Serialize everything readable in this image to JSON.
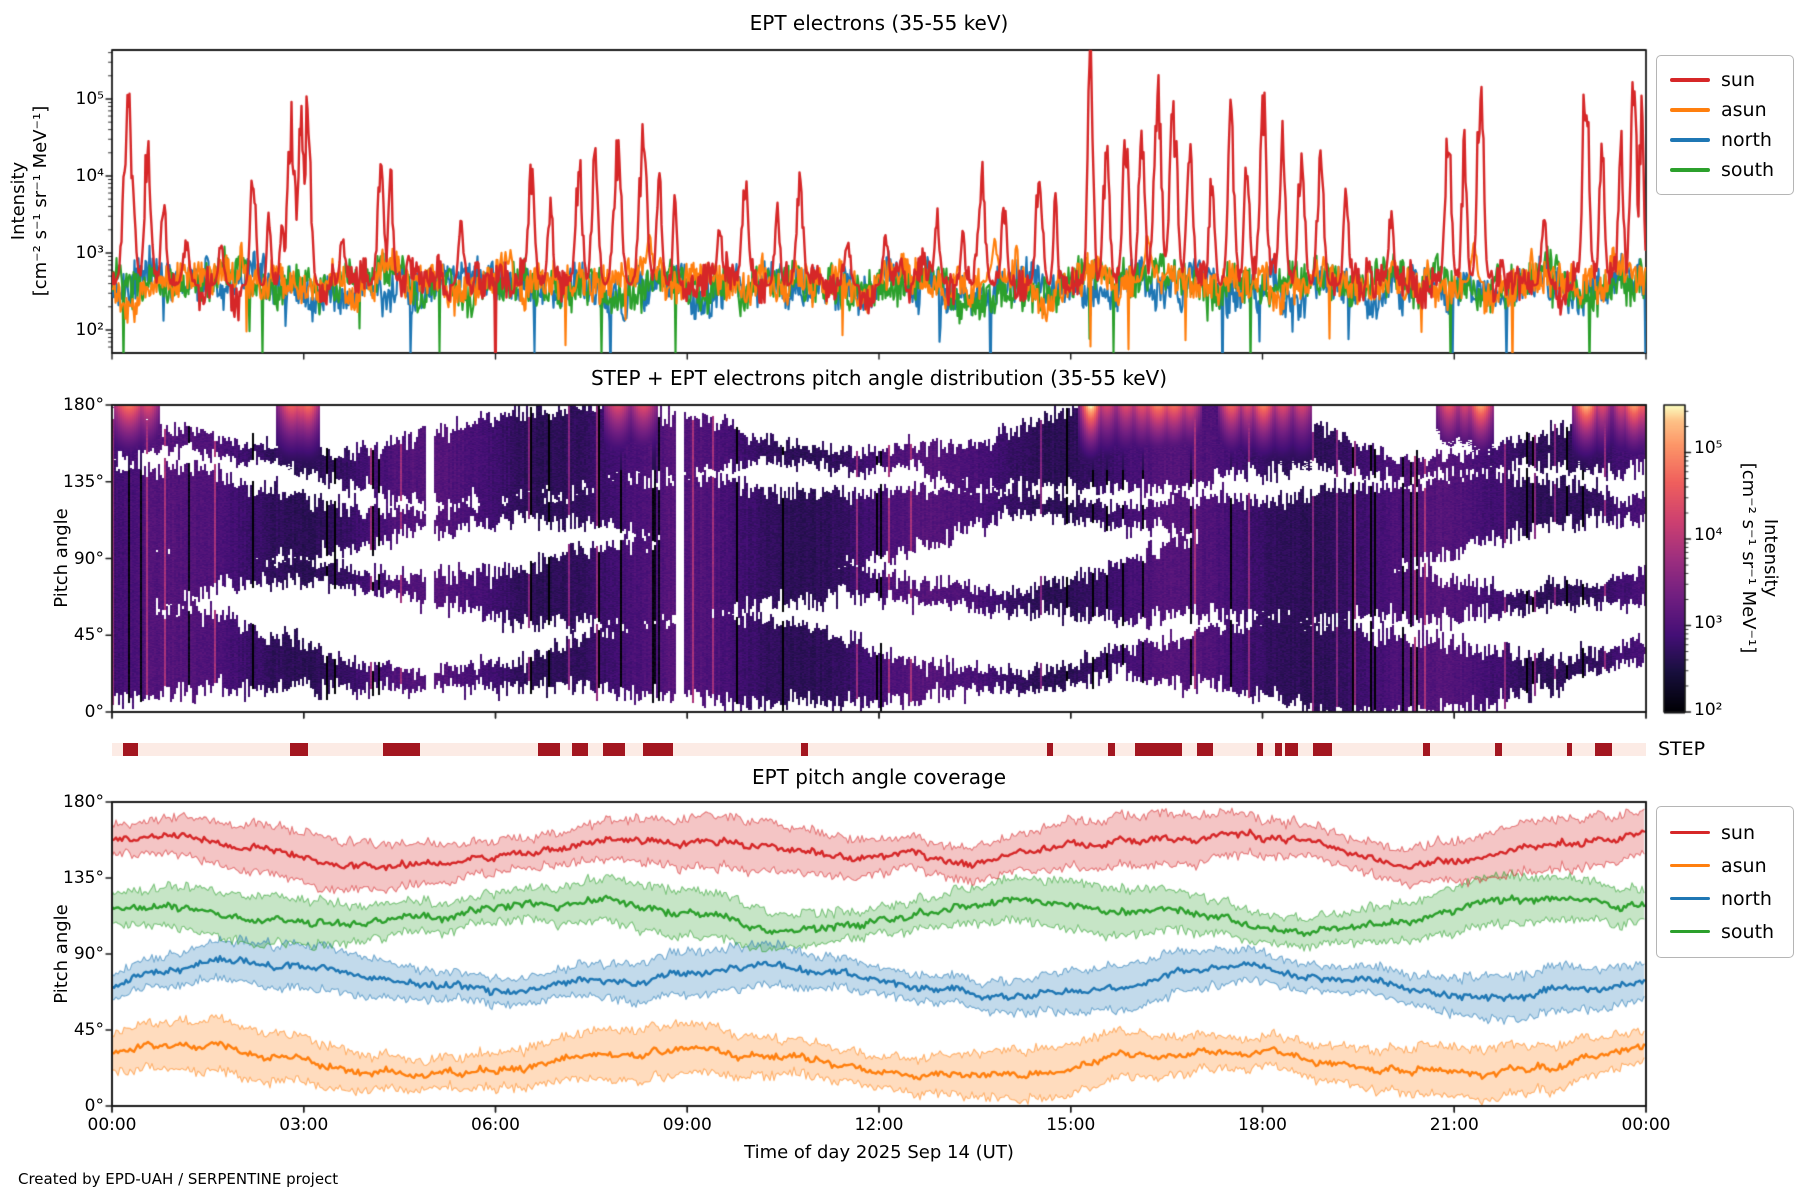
{
  "colors": {
    "sun": "#d62728",
    "asun": "#ff7f0e",
    "north": "#1f77b4",
    "south": "#2ca02c",
    "step_bar_bg": "#fcebe5",
    "step_bar_fg": "#a31620",
    "spine": "#1a1a1a"
  },
  "legend": {
    "items": [
      {
        "key": "sun",
        "label": "sun"
      },
      {
        "key": "asun",
        "label": "asun"
      },
      {
        "key": "north",
        "label": "north"
      },
      {
        "key": "south",
        "label": "south"
      }
    ]
  },
  "footer": {
    "attribution": "Created by EPD-UAH / SERPENTINE project"
  },
  "chart_data": [
    {
      "type": "line",
      "title": "EPT electrons (35-55 keV)",
      "ylabel_line1": "Intensity",
      "ylabel_line2": "[cm⁻² s⁻¹ sr⁻¹ MeV⁻¹]",
      "yscale": "log",
      "ylim_log10": [
        1.701,
        5.636
      ],
      "ytick_labels": [
        "10⁵",
        "10⁴",
        "10³",
        "10²"
      ],
      "ytick_values_log10": [
        5,
        4,
        3,
        2
      ],
      "x_range_hours": [
        0,
        24
      ],
      "legend_position": "upper right outside",
      "series": [
        {
          "name": "north",
          "color_key": "north",
          "base_log10": 2.52,
          "jitter_log10": 0.44,
          "dip_prob": 0.012,
          "seed": 33,
          "spikes": []
        },
        {
          "name": "south",
          "color_key": "south",
          "base_log10": 2.6,
          "jitter_log10": 0.42,
          "dip_prob": 0.01,
          "seed": 44,
          "spikes": []
        },
        {
          "name": "asun",
          "color_key": "asun",
          "base_log10": 2.62,
          "jitter_log10": 0.4,
          "dip_prob": 0.008,
          "seed": 22,
          "spikes": [
            {
              "t": 8.4,
              "p": 3.15,
              "w": 0.05
            },
            {
              "t": 13.8,
              "p": 3.1,
              "w": 0.05
            },
            {
              "t": 16.2,
              "p": 3.2,
              "w": 0.05
            },
            {
              "t": 21.3,
              "p": 3.1,
              "w": 0.04
            }
          ]
        },
        {
          "name": "sun",
          "color_key": "sun",
          "base_log10": 2.58,
          "jitter_log10": 0.42,
          "dip_prob": 0.006,
          "seed": 11,
          "spikes": [
            {
              "t": 0.25,
              "p": 4.78,
              "w": 0.07
            },
            {
              "t": 0.55,
              "p": 4.35,
              "w": 0.05
            },
            {
              "t": 0.8,
              "p": 3.6,
              "w": 0.04
            },
            {
              "t": 1.15,
              "p": 3.1,
              "w": 0.05
            },
            {
              "t": 1.7,
              "p": 3.1,
              "w": 0.04
            },
            {
              "t": 2.2,
              "p": 4.05,
              "w": 0.04
            },
            {
              "t": 2.45,
              "p": 3.5,
              "w": 0.03
            },
            {
              "t": 2.65,
              "p": 3.4,
              "w": 0.03
            },
            {
              "t": 2.8,
              "p": 4.6,
              "w": 0.06
            },
            {
              "t": 2.95,
              "p": 4.55,
              "w": 0.05
            },
            {
              "t": 3.05,
              "p": 4.75,
              "w": 0.05
            },
            {
              "t": 3.6,
              "p": 3.2,
              "w": 0.04
            },
            {
              "t": 4.2,
              "p": 4.0,
              "w": 0.05
            },
            {
              "t": 4.35,
              "p": 3.9,
              "w": 0.04
            },
            {
              "t": 5.45,
              "p": 3.35,
              "w": 0.04
            },
            {
              "t": 6.55,
              "p": 3.95,
              "w": 0.05
            },
            {
              "t": 6.85,
              "p": 3.6,
              "w": 0.04
            },
            {
              "t": 7.3,
              "p": 4.05,
              "w": 0.05
            },
            {
              "t": 7.55,
              "p": 4.1,
              "w": 0.05
            },
            {
              "t": 7.9,
              "p": 4.3,
              "w": 0.06
            },
            {
              "t": 8.3,
              "p": 4.35,
              "w": 0.06
            },
            {
              "t": 8.55,
              "p": 4.0,
              "w": 0.04
            },
            {
              "t": 8.8,
              "p": 3.6,
              "w": 0.03
            },
            {
              "t": 9.5,
              "p": 3.3,
              "w": 0.04
            },
            {
              "t": 9.9,
              "p": 3.85,
              "w": 0.05
            },
            {
              "t": 10.4,
              "p": 3.5,
              "w": 0.04
            },
            {
              "t": 10.75,
              "p": 3.95,
              "w": 0.05
            },
            {
              "t": 11.5,
              "p": 3.2,
              "w": 0.04
            },
            {
              "t": 12.1,
              "p": 3.25,
              "w": 0.04
            },
            {
              "t": 12.9,
              "p": 3.45,
              "w": 0.04
            },
            {
              "t": 13.3,
              "p": 3.3,
              "w": 0.03
            },
            {
              "t": 13.6,
              "p": 3.95,
              "w": 0.05
            },
            {
              "t": 13.95,
              "p": 3.6,
              "w": 0.04
            },
            {
              "t": 14.5,
              "p": 4.05,
              "w": 0.05
            },
            {
              "t": 14.75,
              "p": 3.7,
              "w": 0.03
            },
            {
              "t": 15.3,
              "p": 5.55,
              "w": 0.04
            },
            {
              "t": 15.55,
              "p": 4.25,
              "w": 0.05
            },
            {
              "t": 15.85,
              "p": 4.35,
              "w": 0.05
            },
            {
              "t": 16.1,
              "p": 4.45,
              "w": 0.05
            },
            {
              "t": 16.35,
              "p": 4.9,
              "w": 0.06
            },
            {
              "t": 16.6,
              "p": 4.75,
              "w": 0.06
            },
            {
              "t": 16.85,
              "p": 4.35,
              "w": 0.05
            },
            {
              "t": 17.2,
              "p": 4.05,
              "w": 0.04
            },
            {
              "t": 17.5,
              "p": 4.65,
              "w": 0.05
            },
            {
              "t": 17.75,
              "p": 4.35,
              "w": 0.04
            },
            {
              "t": 18.0,
              "p": 4.9,
              "w": 0.05
            },
            {
              "t": 18.3,
              "p": 4.35,
              "w": 0.05
            },
            {
              "t": 18.6,
              "p": 4.25,
              "w": 0.05
            },
            {
              "t": 18.9,
              "p": 4.15,
              "w": 0.05
            },
            {
              "t": 19.3,
              "p": 3.65,
              "w": 0.04
            },
            {
              "t": 20.0,
              "p": 3.45,
              "w": 0.04
            },
            {
              "t": 20.9,
              "p": 4.45,
              "w": 0.05
            },
            {
              "t": 21.15,
              "p": 4.25,
              "w": 0.04
            },
            {
              "t": 21.4,
              "p": 5.15,
              "w": 0.05
            },
            {
              "t": 22.4,
              "p": 3.45,
              "w": 0.04
            },
            {
              "t": 23.05,
              "p": 5.3,
              "w": 0.05
            },
            {
              "t": 23.3,
              "p": 4.35,
              "w": 0.04
            },
            {
              "t": 23.6,
              "p": 4.3,
              "w": 0.04
            },
            {
              "t": 23.8,
              "p": 5.1,
              "w": 0.05
            },
            {
              "t": 23.92,
              "p": 4.65,
              "w": 0.04
            }
          ]
        }
      ]
    },
    {
      "type": "heatmap",
      "title": "STEP + EPT electrons pitch angle distribution (35-55 keV)",
      "ylabel": "Pitch angle",
      "ytick_labels": [
        "180°",
        "135°",
        "90°",
        "45°",
        "0°"
      ],
      "ytick_values_deg": [
        180,
        135,
        90,
        45,
        0
      ],
      "value_scale": "log",
      "value_range_log10": [
        2.0,
        5.55
      ],
      "colormap": "magma",
      "base_value_log10": 2.85,
      "gaps_hours": [
        [
          4.9,
          5.03
        ],
        [
          8.82,
          8.93
        ]
      ],
      "band_width_deg": {
        "base": 15,
        "slow_amp": 11,
        "noise_amp": 9,
        "min": 5,
        "max": 40
      },
      "hot_region_min_pitch_deg": 142,
      "colorbar": {
        "label_line1": "Intensity",
        "label_line2": "[cm⁻² s⁻¹ sr⁻¹ MeV⁻¹]",
        "tick_labels": [
          "10⁵",
          "10⁴",
          "10³",
          "10²"
        ],
        "tick_values_log10": [
          5,
          4,
          3,
          2
        ]
      },
      "step_availability": {
        "label": "STEP",
        "segments": [
          [
            0.0072,
            0.017
          ],
          [
            0.116,
            0.1278
          ],
          [
            0.1767,
            0.2008
          ],
          [
            0.2777,
            0.2921
          ],
          [
            0.2999,
            0.3103
          ],
          [
            0.3201,
            0.3344
          ],
          [
            0.3462,
            0.3657
          ],
          [
            0.4491,
            0.4537
          ],
          [
            0.6095,
            0.6134
          ],
          [
            0.6493,
            0.6538
          ],
          [
            0.6669,
            0.6975
          ],
          [
            0.7073,
            0.7177
          ],
          [
            0.7464,
            0.7503
          ],
          [
            0.7581,
            0.7627
          ],
          [
            0.7646,
            0.7731
          ],
          [
            0.7829,
            0.7953
          ],
          [
            0.8546,
            0.8592
          ],
          [
            0.9015,
            0.9061
          ],
          [
            0.9485,
            0.9518
          ],
          [
            0.9668,
            0.9779
          ]
        ]
      }
    },
    {
      "type": "line-band",
      "title": "EPT pitch angle coverage",
      "ylabel": "Pitch angle",
      "xlabel": "Time of day 2025 Sep 14 (UT)",
      "ytick_labels": [
        "180°",
        "135°",
        "90°",
        "45°",
        "0°"
      ],
      "ytick_values_deg": [
        180,
        135,
        90,
        45,
        0
      ],
      "ylim_deg": [
        0,
        180
      ],
      "xtick_labels": [
        "00:00",
        "03:00",
        "06:00",
        "09:00",
        "12:00",
        "15:00",
        "18:00",
        "21:00",
        "00:00"
      ],
      "xtick_hours": [
        0,
        3,
        6,
        9,
        12,
        15,
        18,
        21,
        24
      ],
      "legend_position": "upper right outside",
      "series": [
        {
          "name": "sun",
          "color_key": "sun",
          "center_mean_deg": 152,
          "band_halfwidth_deg": 12,
          "seed": 101
        },
        {
          "name": "asun",
          "color_key": "asun",
          "center_mean_deg": 27,
          "band_halfwidth_deg": 12,
          "seed": 202
        },
        {
          "name": "north",
          "color_key": "north",
          "center_mean_deg": 74,
          "band_halfwidth_deg": 10,
          "seed": 303
        },
        {
          "name": "south",
          "color_key": "south",
          "center_mean_deg": 113,
          "band_halfwidth_deg": 11,
          "seed": 404
        }
      ]
    }
  ]
}
